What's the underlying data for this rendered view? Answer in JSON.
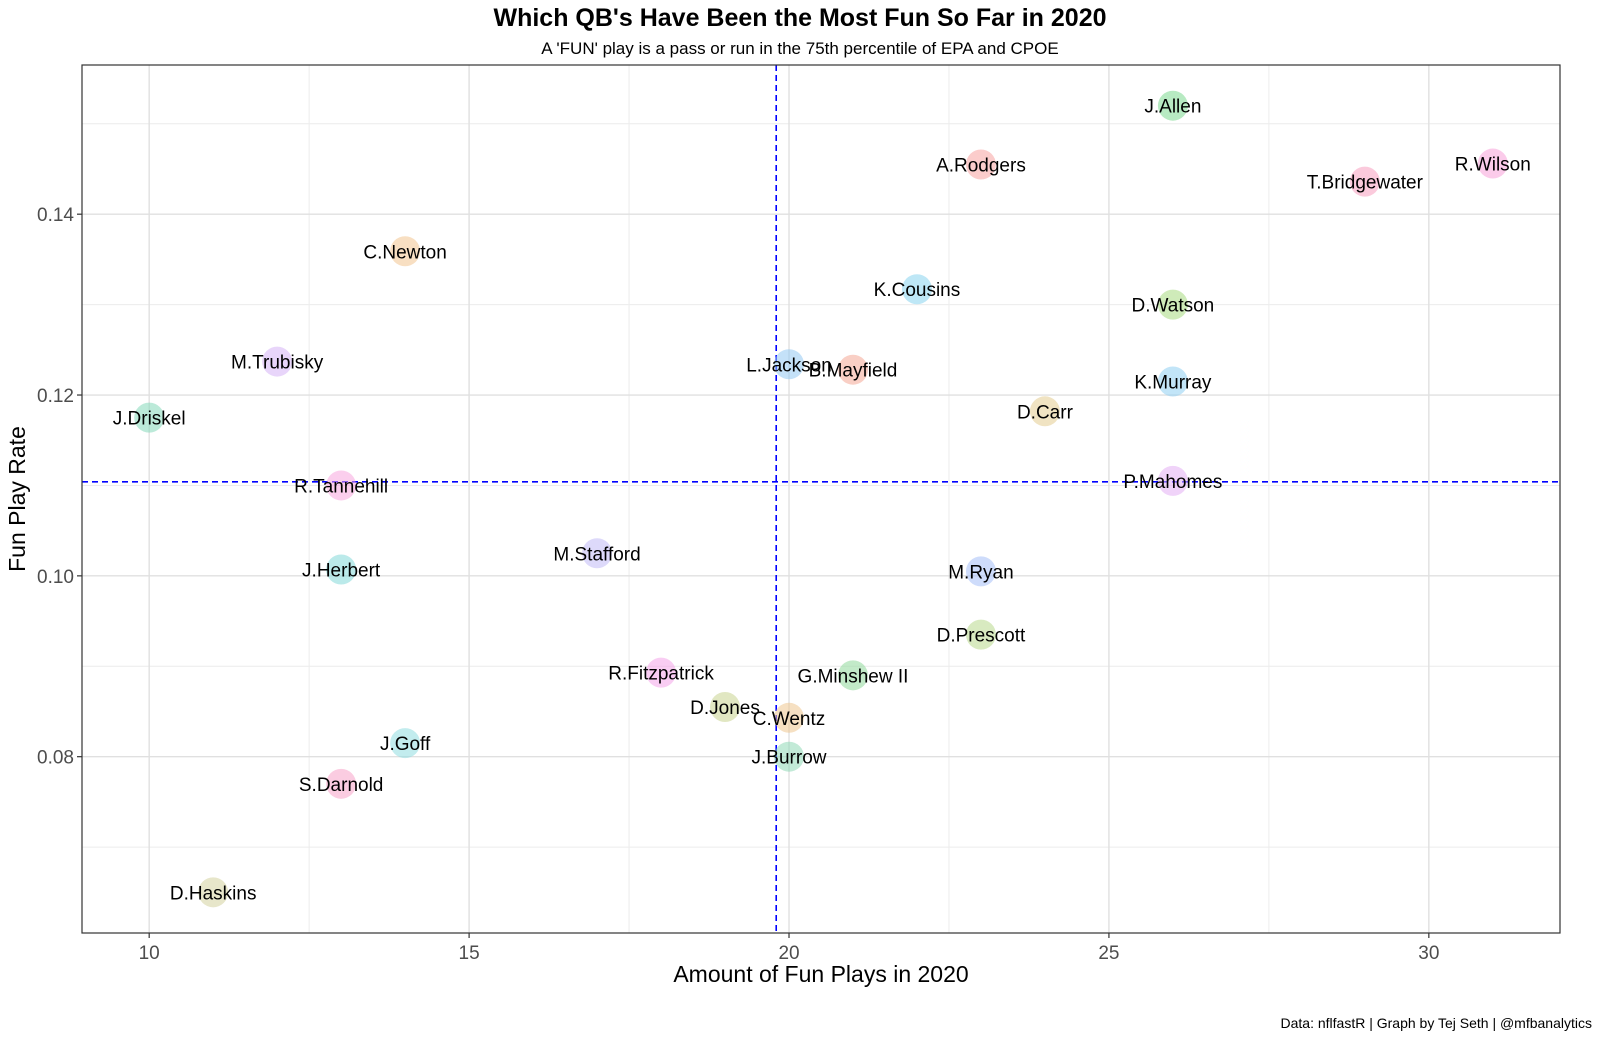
{
  "chart_data": {
    "type": "scatter",
    "title": "Which QB's Have Been the Most Fun So Far in 2020",
    "subtitle": "A 'FUN' play is a pass or run in the 75th percentile of EPA and CPOE",
    "xlabel": "Amount of Fun Plays in 2020",
    "ylabel": "Fun Play Rate",
    "caption": "Data: nflfastR | Graph by Tej Seth | @mfbanalytics",
    "xlim": [
      8.95,
      32.05
    ],
    "ylim": [
      0.0605,
      0.1565
    ],
    "x_ticks": [
      10,
      15,
      20,
      25,
      30
    ],
    "x_tick_labels": [
      "10",
      "15",
      "20",
      "25",
      "30"
    ],
    "y_ticks": [
      0.08,
      0.1,
      0.12,
      0.14
    ],
    "y_tick_labels": [
      "0.08",
      "0.10",
      "0.12",
      "0.14"
    ],
    "grid": true,
    "reference_lines": {
      "x_mean": 19.8,
      "y_mean": 0.1104,
      "color": "#0000ff",
      "style": "dashed"
    },
    "points": [
      {
        "name": "J.Allen",
        "x": 26,
        "y": 0.152,
        "color": "#7bd88f"
      },
      {
        "name": "A.Rodgers",
        "x": 23,
        "y": 0.1455,
        "color": "#f8a3a0"
      },
      {
        "name": "R.Wilson",
        "x": 31,
        "y": 0.1456,
        "color": "#f7a1d9"
      },
      {
        "name": "T.Bridgewater",
        "x": 29,
        "y": 0.1436,
        "color": "#f79fbf"
      },
      {
        "name": "C.Newton",
        "x": 14,
        "y": 0.1359,
        "color": "#f2c48f"
      },
      {
        "name": "K.Cousins",
        "x": 22,
        "y": 0.1317,
        "color": "#89d3ef"
      },
      {
        "name": "D.Watson",
        "x": 26,
        "y": 0.13,
        "color": "#a7db7f"
      },
      {
        "name": "M.Trubisky",
        "x": 12,
        "y": 0.1237,
        "color": "#d6b3f6"
      },
      {
        "name": "L.Jackson",
        "x": 20,
        "y": 0.1234,
        "color": "#93c9f3"
      },
      {
        "name": "B.Mayfield",
        "x": 21,
        "y": 0.1228,
        "color": "#f4a895"
      },
      {
        "name": "K.Murray",
        "x": 26,
        "y": 0.1215,
        "color": "#8fcff2"
      },
      {
        "name": "J.Driskel",
        "x": 10,
        "y": 0.1175,
        "color": "#85d9b9"
      },
      {
        "name": "D.Carr",
        "x": 24,
        "y": 0.1182,
        "color": "#e4cc8f"
      },
      {
        "name": "P.Mahomes",
        "x": 26,
        "y": 0.1105,
        "color": "#e3aef4"
      },
      {
        "name": "R.Tannehill",
        "x": 13,
        "y": 0.11,
        "color": "#f8a6de"
      },
      {
        "name": "M.Stafford",
        "x": 17,
        "y": 0.1025,
        "color": "#c1b9f6"
      },
      {
        "name": "J.Herbert",
        "x": 13,
        "y": 0.1007,
        "color": "#83d8d8"
      },
      {
        "name": "M.Ryan",
        "x": 23,
        "y": 0.1005,
        "color": "#a6bff7"
      },
      {
        "name": "D.Prescott",
        "x": 23,
        "y": 0.0935,
        "color": "#b8d98c"
      },
      {
        "name": "R.Fitzpatrick",
        "x": 18,
        "y": 0.0893,
        "color": "#f4a4ea"
      },
      {
        "name": "G.Minshew II",
        "x": 21,
        "y": 0.089,
        "color": "#8fd89a"
      },
      {
        "name": "D.Jones",
        "x": 19,
        "y": 0.0855,
        "color": "#c8d48f"
      },
      {
        "name": "C.Wentz",
        "x": 20,
        "y": 0.0843,
        "color": "#efc78f"
      },
      {
        "name": "J.Goff",
        "x": 14,
        "y": 0.0815,
        "color": "#8fdde0"
      },
      {
        "name": "J.Burrow",
        "x": 20,
        "y": 0.08,
        "color": "#8fd9b6"
      },
      {
        "name": "S.Darnold",
        "x": 13,
        "y": 0.077,
        "color": "#f7a3c8"
      },
      {
        "name": "D.Haskins",
        "x": 11,
        "y": 0.065,
        "color": "#d3d29f"
      }
    ]
  }
}
